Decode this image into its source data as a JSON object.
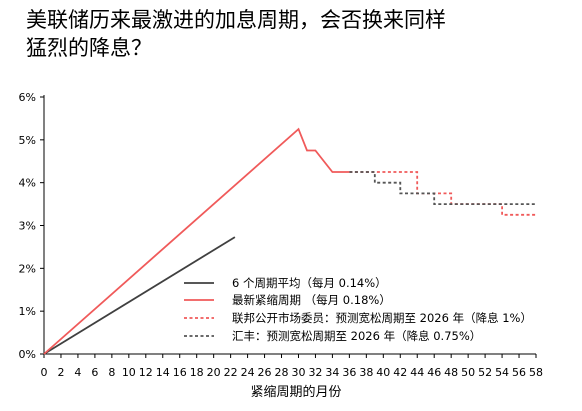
{
  "title_lines": [
    "美联储历来最激进的加息周期，会否换来同样",
    "猛烈的降息？"
  ],
  "colors": {
    "average": "#404040",
    "latest": "#f05a5a",
    "fomc": "#f05a5a",
    "huifeng": "#555555"
  },
  "chart_data": {
    "type": "line",
    "title": "美联储历来最激进的加息周期，会否换来同样猛烈的降息？",
    "xlabel": "紧缩周期的月份",
    "ylabel": "",
    "xlim": [
      0,
      58
    ],
    "ylim": [
      0,
      6
    ],
    "x_ticks": [
      0,
      2,
      4,
      6,
      8,
      10,
      12,
      14,
      16,
      18,
      20,
      22,
      24,
      26,
      28,
      30,
      32,
      34,
      36,
      38,
      40,
      42,
      44,
      46,
      48,
      50,
      52,
      54,
      56,
      58
    ],
    "y_ticks": [
      0,
      1,
      2,
      3,
      4,
      5,
      6
    ],
    "y_tick_labels": [
      "0%",
      "1%",
      "2%",
      "3%",
      "4%",
      "5%",
      "6%"
    ],
    "grid": false,
    "legend_position": "bottom-right",
    "series": [
      {
        "name": "6 个周期平均（每月 0.14%）",
        "key": "average",
        "style": "solid",
        "x": [
          0,
          22.5
        ],
        "y": [
          0,
          2.73
        ]
      },
      {
        "name": "最新紧缩周期 （每月 0.18%）",
        "key": "latest",
        "style": "solid",
        "x": [
          0,
          30,
          31,
          32,
          34,
          36
        ],
        "y": [
          0,
          5.25,
          4.75,
          4.75,
          4.25,
          4.25
        ]
      },
      {
        "name": "联邦公开市场委员：预测宽松周期至 2026 年（降息 1%）",
        "key": "fomc",
        "style": "dashed",
        "x": [
          36,
          44,
          48,
          54,
          58
        ],
        "y": [
          4.25,
          3.75,
          3.5,
          3.25,
          3.25
        ],
        "step": true
      },
      {
        "name": "汇丰：预测宽松周期至 2026 年（降息 0.75%）",
        "key": "huifeng",
        "style": "dashed",
        "x": [
          36,
          39,
          42,
          46,
          58
        ],
        "y": [
          4.25,
          4.0,
          3.75,
          3.5,
          3.5
        ],
        "step": true
      }
    ]
  }
}
